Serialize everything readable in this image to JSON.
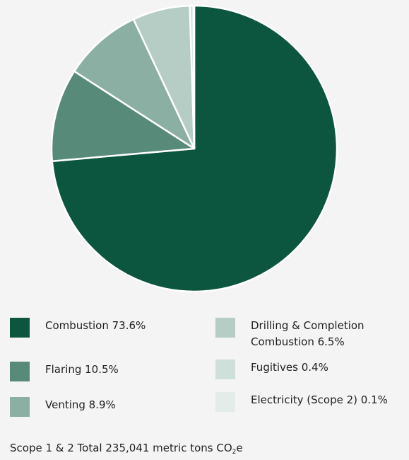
{
  "chart_data": {
    "type": "pie",
    "title": "",
    "unit": "%",
    "slices": [
      {
        "label": "Combustion 73.6%",
        "value": 73.6,
        "color": "#0c5640"
      },
      {
        "label": "Flaring 10.5%",
        "value": 10.5,
        "color": "#578a79"
      },
      {
        "label": "Venting 8.9%",
        "value": 8.9,
        "color": "#8bb0a3"
      },
      {
        "label": "Drilling & Completion Combustion 6.5%",
        "value": 6.5,
        "color": "#b5cdc5"
      },
      {
        "label": "Fugitives 0.4%",
        "value": 0.4,
        "color": "#cfe0da"
      },
      {
        "label": "Electricity (Scope 2) 0.1%",
        "value": 0.1,
        "color": "#e3ece8"
      }
    ],
    "legend": {
      "placement": "bottom",
      "columns": [
        [
          "Combustion 73.6%",
          "Flaring 10.5%",
          "Venting 8.9%"
        ],
        [
          "Drilling & Completion Combustion 6.5%",
          "Fugitives 0.4%",
          "Electricity (Scope 2) 0.1%"
        ]
      ]
    }
  },
  "legend": {
    "combustion": "Combustion 73.6%",
    "flaring": "Flaring 10.5%",
    "venting": "Venting 8.9%",
    "drilling": "Drilling & Completion Combustion 6.5%",
    "fugitives": "Fugitives 0.4%",
    "electricity": "Electricity (Scope 2) 0.1%"
  },
  "footer": {
    "text_prefix": "Scope 1 & 2 Total 235,041 metric tons CO",
    "subscript": "2",
    "text_suffix": "e"
  }
}
